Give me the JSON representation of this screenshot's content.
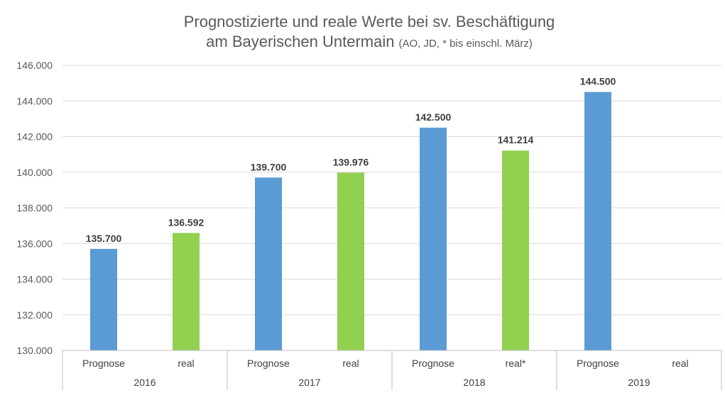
{
  "chart_data": {
    "type": "bar",
    "title_line1": "Prognostizierte und reale Werte bei sv. Beschäftigung",
    "title_line2_main": "am Bayerischen Untermain",
    "title_line2_note": "(AO, JD, * bis einschl. März)",
    "ylim": [
      130000,
      146000
    ],
    "ytick_step": 2000,
    "yticks": [
      "130.000",
      "132.000",
      "134.000",
      "136.000",
      "138.000",
      "140.000",
      "142.000",
      "144.000",
      "146.000"
    ],
    "grid": true,
    "groups": [
      {
        "label": "2016",
        "bars": [
          {
            "category": "Prognose",
            "value": 135700,
            "label": "135.700",
            "kind": "prognose"
          },
          {
            "category": "real",
            "value": 136592,
            "label": "136.592",
            "kind": "real"
          }
        ]
      },
      {
        "label": "2017",
        "bars": [
          {
            "category": "Prognose",
            "value": 139700,
            "label": "139.700",
            "kind": "prognose"
          },
          {
            "category": "real",
            "value": 139976,
            "label": "139.976",
            "kind": "real"
          }
        ]
      },
      {
        "label": "2018",
        "bars": [
          {
            "category": "Prognose",
            "value": 142500,
            "label": "142.500",
            "kind": "prognose"
          },
          {
            "category": "real*",
            "value": 141214,
            "label": "141.214",
            "kind": "real"
          }
        ]
      },
      {
        "label": "2019",
        "bars": [
          {
            "category": "Prognose",
            "value": 144500,
            "label": "144.500",
            "kind": "prognose"
          },
          {
            "category": "real",
            "value": null,
            "label": "",
            "kind": "real"
          }
        ]
      }
    ],
    "colors": {
      "prognose": "#5b9bd5",
      "real": "#92d050",
      "grid": "#d9d9d9",
      "axis": "#bfbfbf"
    }
  }
}
